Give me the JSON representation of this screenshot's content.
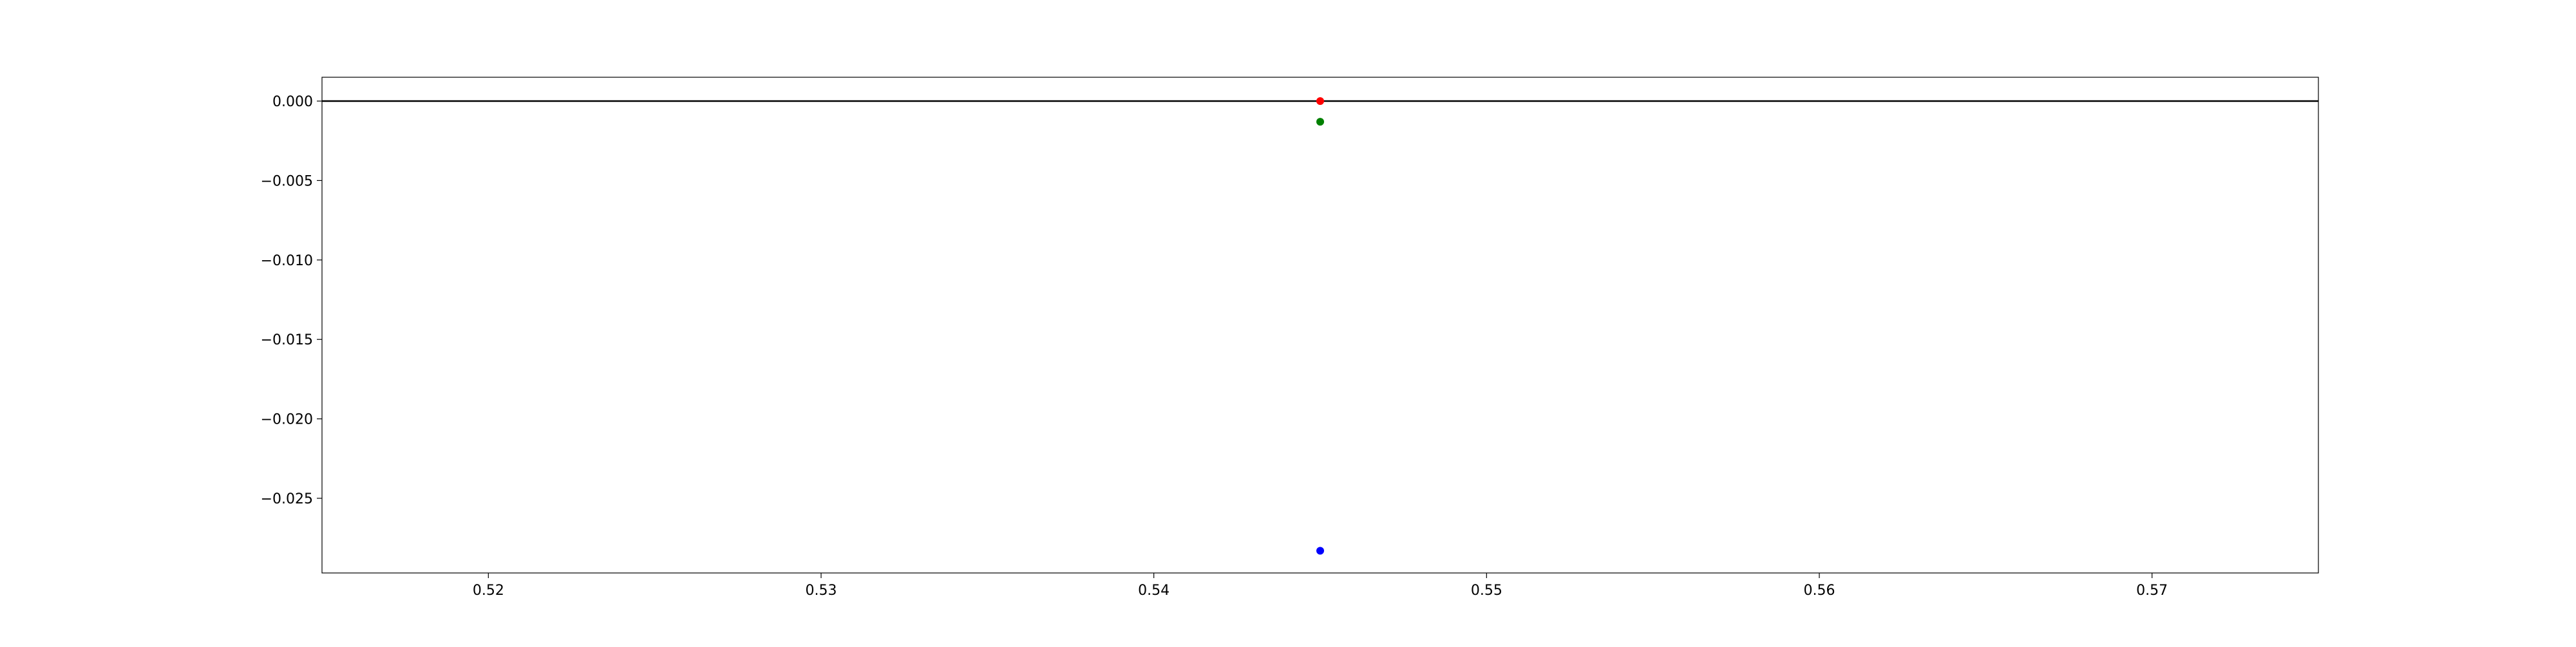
{
  "chart_data": {
    "type": "scatter",
    "title": "",
    "xlabel": "",
    "ylabel": "",
    "xlim": [
      0.515,
      0.575
    ],
    "ylim": [
      -0.0297,
      0.0015
    ],
    "xticks": [
      0.52,
      0.53,
      0.54,
      0.55,
      0.56,
      0.57
    ],
    "xtick_labels": [
      "0.52",
      "0.53",
      "0.54",
      "0.55",
      "0.56",
      "0.57"
    ],
    "yticks": [
      0.0,
      -0.005,
      -0.01,
      -0.015,
      -0.02,
      -0.025
    ],
    "ytick_labels": [
      "0.000",
      "−0.005",
      "−0.010",
      "−0.015",
      "−0.020",
      "−0.025"
    ],
    "grid": false,
    "reference_line": {
      "y": 0.0,
      "color": "#000000"
    },
    "series": [
      {
        "color": "#ff0000",
        "points": [
          {
            "x": 0.545,
            "y": 0.0
          }
        ]
      },
      {
        "color": "#008000",
        "points": [
          {
            "x": 0.545,
            "y": -0.0013
          }
        ]
      },
      {
        "color": "#0000ff",
        "points": [
          {
            "x": 0.545,
            "y": -0.0283
          }
        ]
      }
    ]
  }
}
